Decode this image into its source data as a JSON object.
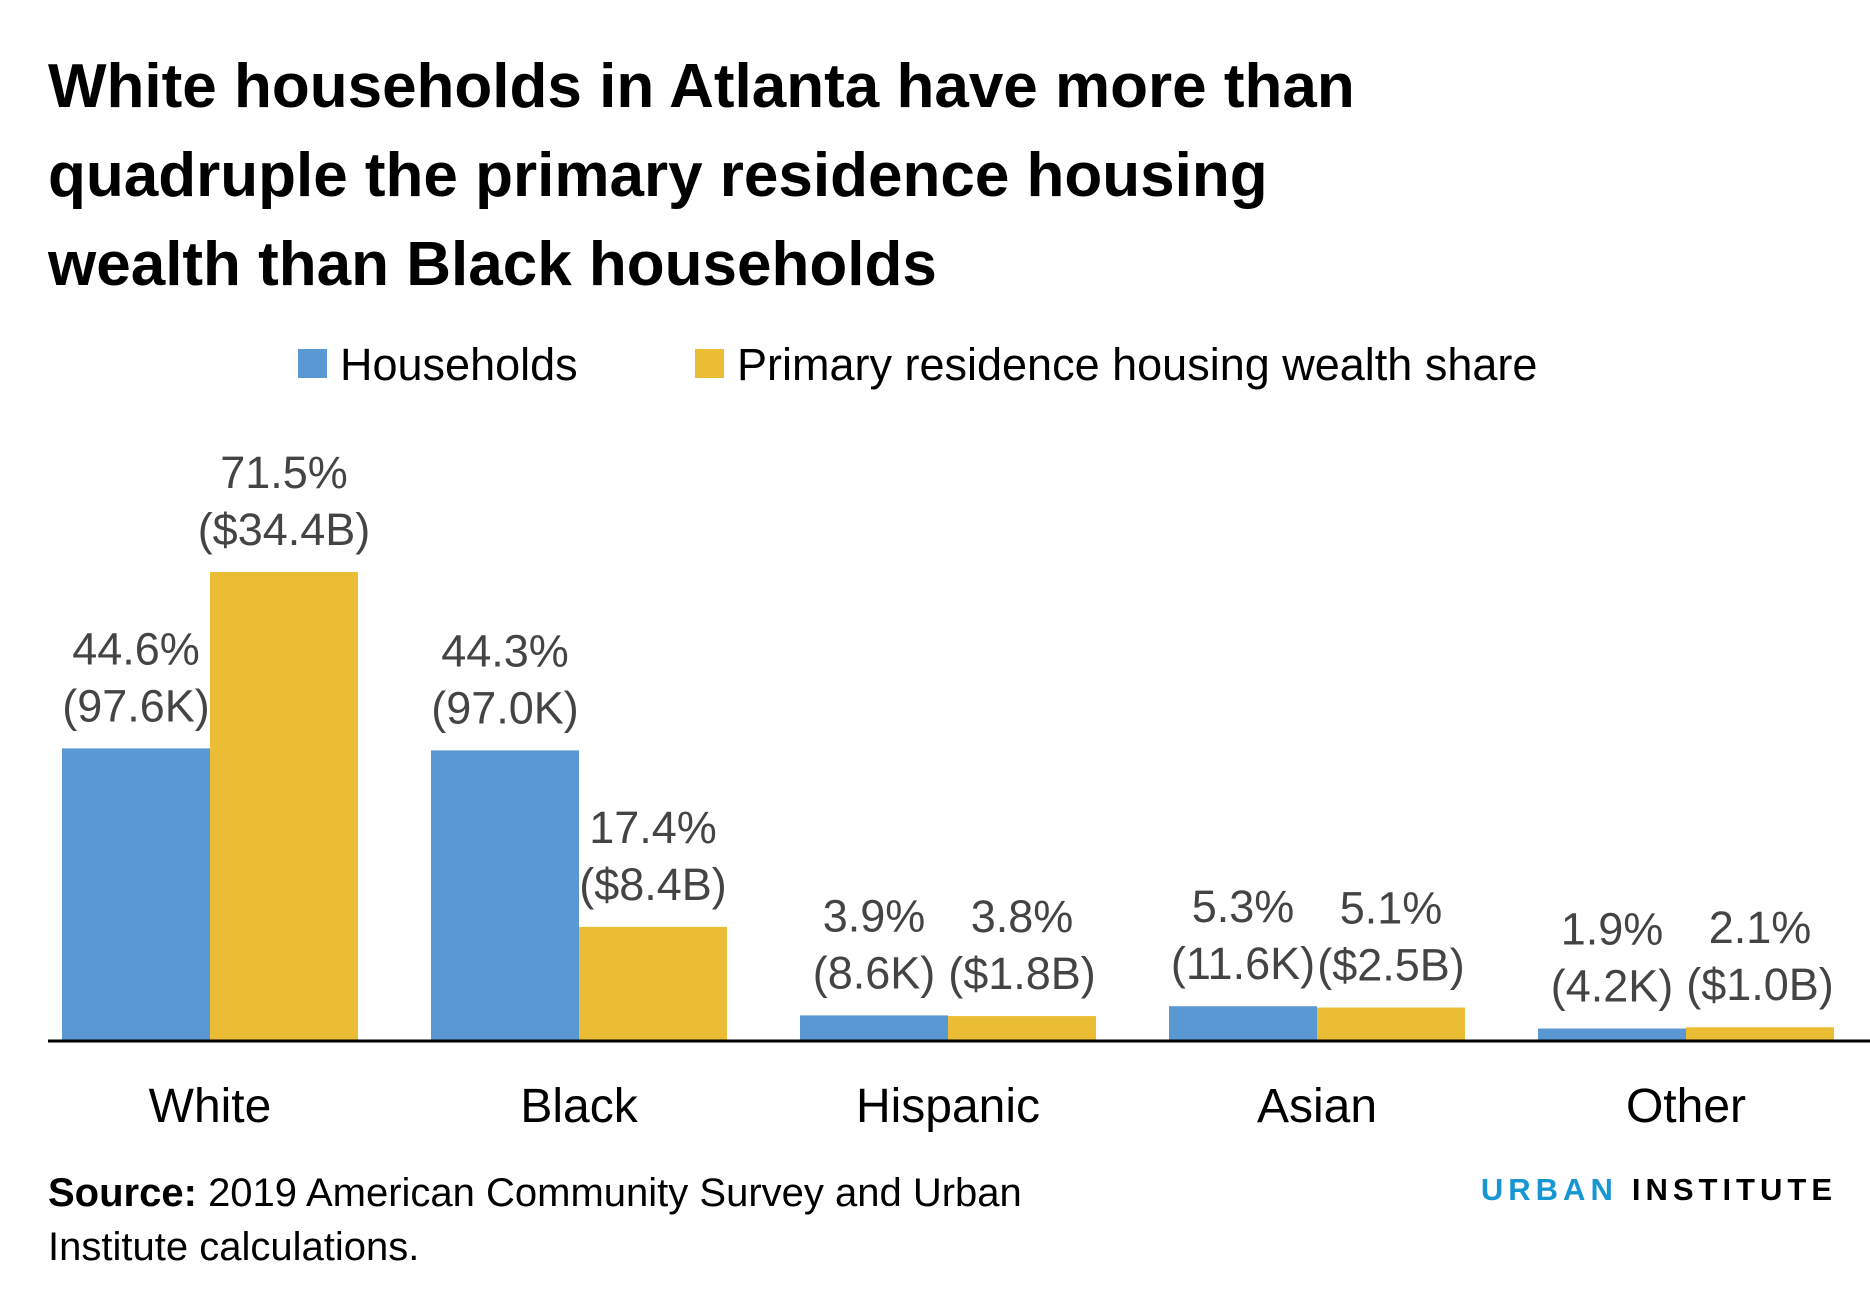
{
  "chart_data": {
    "type": "bar",
    "title": "White households in Atlanta have more than quadruple the primary residence housing wealth than Black households",
    "categories": [
      "White",
      "Black",
      "Hispanic",
      "Asian",
      "Other"
    ],
    "series": [
      {
        "name": "Households",
        "color": "#5a98d4",
        "values": [
          44.6,
          44.3,
          3.9,
          5.3,
          1.9
        ],
        "value_labels": [
          [
            "44.6%",
            "(97.6K)"
          ],
          [
            "44.3%",
            "(97.0K)"
          ],
          [
            "3.9%",
            "(8.6K)"
          ],
          [
            "5.3%",
            "(11.6K)"
          ],
          [
            "1.9%",
            "(4.2K)"
          ]
        ]
      },
      {
        "name": "Primary residence housing wealth share",
        "color": "#ebbd34",
        "values": [
          71.5,
          17.4,
          3.8,
          5.1,
          2.1
        ],
        "value_labels": [
          [
            "71.5%",
            "($34.4B)"
          ],
          [
            "17.4%",
            "($8.4B)"
          ],
          [
            "3.8%",
            "($1.8B)"
          ],
          [
            "5.1%",
            "($2.5B)"
          ],
          [
            "2.1%",
            "($1.0B)"
          ]
        ]
      }
    ],
    "legend": "top",
    "source_label": "Source:",
    "source": "2019 American Community Survey and Urban Institute calculations.",
    "logo": [
      "URBAN",
      "INSTITUTE"
    ]
  }
}
